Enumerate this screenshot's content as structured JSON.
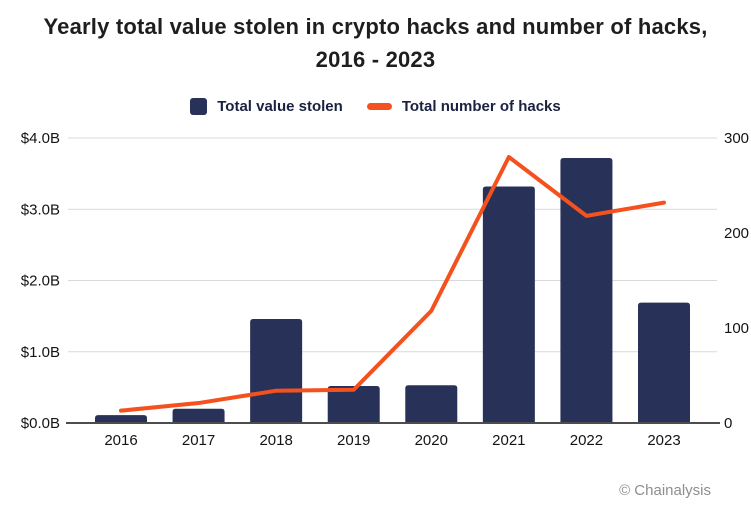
{
  "title": {
    "line1": "Yearly total value stolen in crypto hacks and number of hacks,",
    "line2": "2016 - 2023"
  },
  "legend": [
    {
      "label": "Total value stolen",
      "swatch": "bar-swatch"
    },
    {
      "label": "Total number of hacks",
      "swatch": "line-swatch"
    }
  ],
  "footer": {
    "credit": "© Chainalysis"
  },
  "colors": {
    "bar": "#283158",
    "line": "#f4511e",
    "grid": "#d9d9d9",
    "axis": "#4d4d4d",
    "title_text": "#1e1e1e",
    "tick_text": "#141414",
    "credit_text": "#8e8e8e",
    "background": "#ffffff"
  },
  "chart_data": {
    "type": "bar",
    "subtype": "bar+line dual-axis",
    "title": "Yearly total value stolen in crypto hacks and number of hacks, 2016 - 2023",
    "categories": [
      "2016",
      "2017",
      "2018",
      "2019",
      "2020",
      "2021",
      "2022",
      "2023"
    ],
    "series": [
      {
        "name": "Total value stolen",
        "type": "bar",
        "axis": "left",
        "unit": "USD billions",
        "values": [
          0.11,
          0.2,
          1.46,
          0.52,
          0.53,
          3.32,
          3.72,
          1.69
        ]
      },
      {
        "name": "Total number of hacks",
        "type": "line",
        "axis": "right",
        "unit": "hacks",
        "values": [
          13,
          21,
          34,
          35,
          118,
          280,
          218,
          232
        ]
      }
    ],
    "left_axis": {
      "ticks": [
        "$0.0B",
        "$1.0B",
        "$2.0B",
        "$3.0B",
        "$4.0B"
      ],
      "tick_values": [
        0,
        1,
        2,
        3,
        4
      ],
      "ylim": [
        0,
        4
      ]
    },
    "right_axis": {
      "ticks": [
        "0",
        "100",
        "200",
        "300"
      ],
      "tick_values": [
        0,
        100,
        200,
        300
      ],
      "ylim": [
        0,
        300
      ]
    },
    "grid": "horizontal",
    "legend_position": "top"
  }
}
